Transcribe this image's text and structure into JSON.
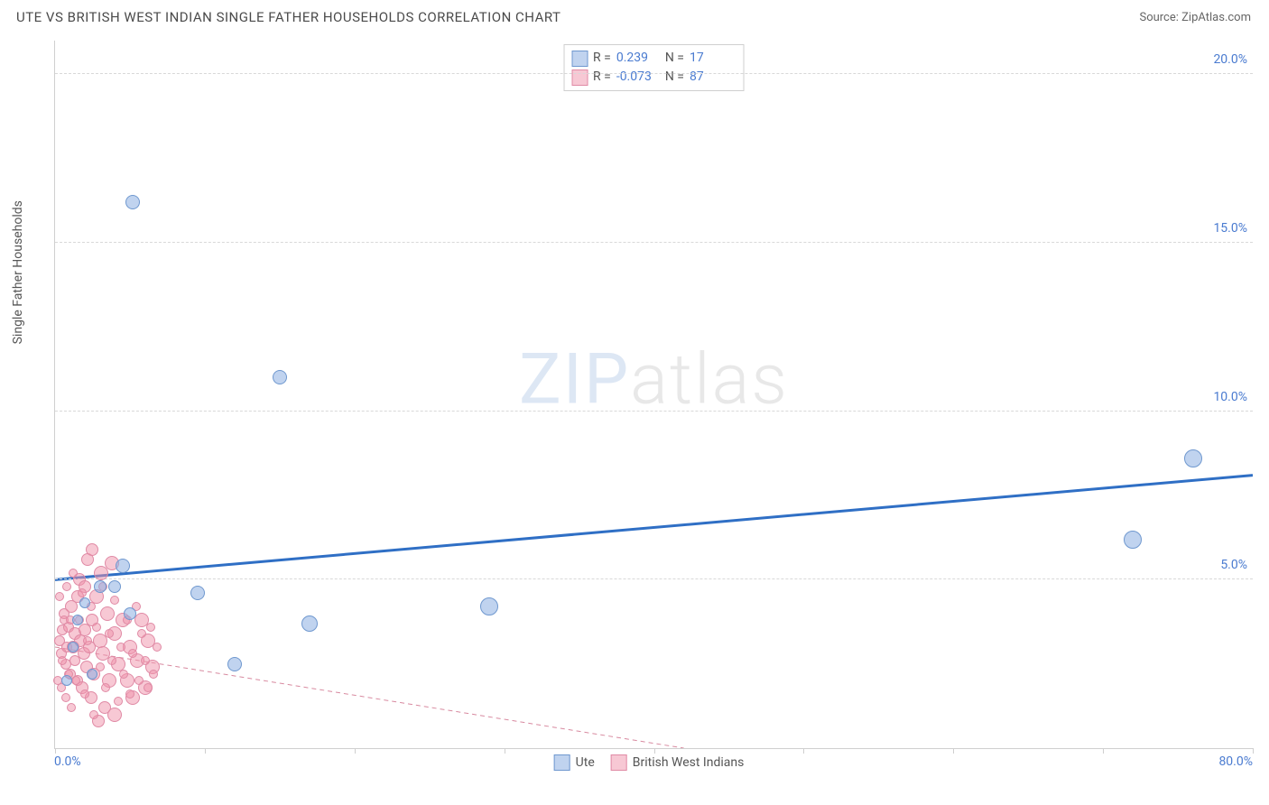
{
  "header": {
    "title": "UTE VS BRITISH WEST INDIAN SINGLE FATHER HOUSEHOLDS CORRELATION CHART",
    "source": "Source: ZipAtlas.com"
  },
  "watermark": {
    "part1": "ZIP",
    "part2": "atlas"
  },
  "chart": {
    "type": "scatter",
    "y_axis_label": "Single Father Households",
    "xlim": [
      0,
      80
    ],
    "ylim": [
      0,
      21
    ],
    "x_ticks_at": [
      0,
      10,
      20,
      30,
      40,
      50,
      60,
      70,
      80
    ],
    "x_tick_labels": {
      "0": "0.0%",
      "80": "80.0%"
    },
    "y_gridlines": [
      5,
      10,
      15,
      20
    ],
    "y_tick_labels": {
      "5": "5.0%",
      "10": "10.0%",
      "15": "15.0%",
      "20": "20.0%"
    },
    "grid_color": "#d8d8d8",
    "axis_color": "#cfcfcf",
    "background_color": "#ffffff",
    "tick_label_color": "#4a7bd0",
    "tick_label_fontsize": 14,
    "legend_stats": [
      {
        "series": "ute",
        "R": "0.239",
        "N": "17"
      },
      {
        "series": "bwi",
        "R": "-0.073",
        "N": "87"
      }
    ],
    "legend_bottom": [
      {
        "swatch": "blue",
        "label": "Ute"
      },
      {
        "swatch": "pink",
        "label": "British West Indians"
      }
    ],
    "series": {
      "ute": {
        "label": "Ute",
        "marker_fill": "rgba(140,175,225,0.55)",
        "marker_stroke": "#6f98cf",
        "marker_radius": 8,
        "trend": {
          "x1": 0,
          "y1": 5.0,
          "x2": 80,
          "y2": 8.1,
          "color": "#2f6fc5",
          "width": 3,
          "dash": "none"
        },
        "points": [
          {
            "x": 5.2,
            "y": 16.2,
            "r": 8
          },
          {
            "x": 15.0,
            "y": 11.0,
            "r": 8
          },
          {
            "x": 76.0,
            "y": 8.6,
            "r": 10
          },
          {
            "x": 72.0,
            "y": 6.2,
            "r": 10
          },
          {
            "x": 29.0,
            "y": 4.2,
            "r": 10
          },
          {
            "x": 9.5,
            "y": 4.6,
            "r": 8
          },
          {
            "x": 4.5,
            "y": 5.4,
            "r": 8
          },
          {
            "x": 4.0,
            "y": 4.8,
            "r": 7
          },
          {
            "x": 3.0,
            "y": 4.8,
            "r": 7
          },
          {
            "x": 5.0,
            "y": 4.0,
            "r": 7
          },
          {
            "x": 17.0,
            "y": 3.7,
            "r": 9
          },
          {
            "x": 12.0,
            "y": 2.5,
            "r": 8
          },
          {
            "x": 2.0,
            "y": 4.3,
            "r": 6
          },
          {
            "x": 2.5,
            "y": 2.2,
            "r": 6
          },
          {
            "x": 1.2,
            "y": 3.0,
            "r": 6
          },
          {
            "x": 1.5,
            "y": 3.8,
            "r": 6
          },
          {
            "x": 0.8,
            "y": 2.0,
            "r": 6
          }
        ]
      },
      "bwi": {
        "label": "British West Indians",
        "marker_fill": "rgba(240,145,170,0.5)",
        "marker_stroke": "#e08aa5",
        "marker_radius": 7,
        "trend": {
          "x1": 0,
          "y1": 3.0,
          "x2": 42,
          "y2": 0.0,
          "color": "#d88aa0",
          "width": 1,
          "dash": "5,4"
        },
        "points": [
          {
            "x": 0.3,
            "y": 3.2,
            "r": 6
          },
          {
            "x": 0.5,
            "y": 3.5,
            "r": 6
          },
          {
            "x": 0.4,
            "y": 2.8,
            "r": 6
          },
          {
            "x": 0.6,
            "y": 4.0,
            "r": 6
          },
          {
            "x": 0.8,
            "y": 3.0,
            "r": 6
          },
          {
            "x": 0.7,
            "y": 2.5,
            "r": 6
          },
          {
            "x": 0.9,
            "y": 3.6,
            "r": 6
          },
          {
            "x": 1.0,
            "y": 2.2,
            "r": 6
          },
          {
            "x": 1.1,
            "y": 4.2,
            "r": 7
          },
          {
            "x": 1.2,
            "y": 3.0,
            "r": 7
          },
          {
            "x": 1.3,
            "y": 3.4,
            "r": 7
          },
          {
            "x": 1.3,
            "y": 2.6,
            "r": 6
          },
          {
            "x": 1.5,
            "y": 4.5,
            "r": 7
          },
          {
            "x": 1.5,
            "y": 2.0,
            "r": 6
          },
          {
            "x": 1.6,
            "y": 5.0,
            "r": 7
          },
          {
            "x": 1.7,
            "y": 3.2,
            "r": 7
          },
          {
            "x": 1.8,
            "y": 1.8,
            "r": 7
          },
          {
            "x": 1.9,
            "y": 2.8,
            "r": 7
          },
          {
            "x": 2.0,
            "y": 3.5,
            "r": 7
          },
          {
            "x": 2.0,
            "y": 4.8,
            "r": 7
          },
          {
            "x": 2.1,
            "y": 2.4,
            "r": 7
          },
          {
            "x": 2.2,
            "y": 5.6,
            "r": 7
          },
          {
            "x": 2.3,
            "y": 3.0,
            "r": 7
          },
          {
            "x": 2.4,
            "y": 1.5,
            "r": 7
          },
          {
            "x": 2.5,
            "y": 5.9,
            "r": 7
          },
          {
            "x": 2.5,
            "y": 3.8,
            "r": 7
          },
          {
            "x": 2.6,
            "y": 2.2,
            "r": 7
          },
          {
            "x": 2.8,
            "y": 4.5,
            "r": 8
          },
          {
            "x": 2.9,
            "y": 0.8,
            "r": 7
          },
          {
            "x": 3.0,
            "y": 3.2,
            "r": 8
          },
          {
            "x": 3.1,
            "y": 5.2,
            "r": 8
          },
          {
            "x": 3.2,
            "y": 2.8,
            "r": 8
          },
          {
            "x": 3.3,
            "y": 1.2,
            "r": 7
          },
          {
            "x": 3.5,
            "y": 4.0,
            "r": 8
          },
          {
            "x": 3.6,
            "y": 2.0,
            "r": 8
          },
          {
            "x": 3.8,
            "y": 5.5,
            "r": 8
          },
          {
            "x": 4.0,
            "y": 3.4,
            "r": 8
          },
          {
            "x": 4.0,
            "y": 1.0,
            "r": 8
          },
          {
            "x": 4.2,
            "y": 2.5,
            "r": 8
          },
          {
            "x": 4.5,
            "y": 3.8,
            "r": 8
          },
          {
            "x": 4.8,
            "y": 2.0,
            "r": 8
          },
          {
            "x": 5.0,
            "y": 3.0,
            "r": 8
          },
          {
            "x": 5.2,
            "y": 1.5,
            "r": 8
          },
          {
            "x": 5.5,
            "y": 2.6,
            "r": 8
          },
          {
            "x": 5.8,
            "y": 3.8,
            "r": 8
          },
          {
            "x": 6.0,
            "y": 1.8,
            "r": 8
          },
          {
            "x": 6.2,
            "y": 3.2,
            "r": 8
          },
          {
            "x": 6.5,
            "y": 2.4,
            "r": 8
          },
          {
            "x": 0.2,
            "y": 2.0,
            "r": 5
          },
          {
            "x": 0.3,
            "y": 4.5,
            "r": 5
          },
          {
            "x": 0.4,
            "y": 1.8,
            "r": 5
          },
          {
            "x": 0.5,
            "y": 2.6,
            "r": 5
          },
          {
            "x": 0.6,
            "y": 3.8,
            "r": 5
          },
          {
            "x": 0.7,
            "y": 1.5,
            "r": 5
          },
          {
            "x": 0.8,
            "y": 4.8,
            "r": 5
          },
          {
            "x": 0.9,
            "y": 2.2,
            "r": 5
          },
          {
            "x": 1.0,
            "y": 3.8,
            "r": 5
          },
          {
            "x": 1.1,
            "y": 1.2,
            "r": 5
          },
          {
            "x": 1.2,
            "y": 5.2,
            "r": 5
          },
          {
            "x": 1.4,
            "y": 2.0,
            "r": 5
          },
          {
            "x": 1.6,
            "y": 3.8,
            "r": 5
          },
          {
            "x": 1.8,
            "y": 4.6,
            "r": 5
          },
          {
            "x": 2.0,
            "y": 1.6,
            "r": 5
          },
          {
            "x": 2.2,
            "y": 3.2,
            "r": 5
          },
          {
            "x": 2.4,
            "y": 4.2,
            "r": 5
          },
          {
            "x": 2.6,
            "y": 1.0,
            "r": 5
          },
          {
            "x": 2.8,
            "y": 3.6,
            "r": 5
          },
          {
            "x": 3.0,
            "y": 2.4,
            "r": 5
          },
          {
            "x": 3.2,
            "y": 4.8,
            "r": 5
          },
          {
            "x": 3.4,
            "y": 1.8,
            "r": 5
          },
          {
            "x": 3.6,
            "y": 3.4,
            "r": 5
          },
          {
            "x": 3.8,
            "y": 2.6,
            "r": 5
          },
          {
            "x": 4.0,
            "y": 4.4,
            "r": 5
          },
          {
            "x": 4.2,
            "y": 1.4,
            "r": 5
          },
          {
            "x": 4.4,
            "y": 3.0,
            "r": 5
          },
          {
            "x": 4.6,
            "y": 2.2,
            "r": 5
          },
          {
            "x": 4.8,
            "y": 3.8,
            "r": 5
          },
          {
            "x": 5.0,
            "y": 1.6,
            "r": 5
          },
          {
            "x": 5.2,
            "y": 2.8,
            "r": 5
          },
          {
            "x": 5.4,
            "y": 4.2,
            "r": 5
          },
          {
            "x": 5.6,
            "y": 2.0,
            "r": 5
          },
          {
            "x": 5.8,
            "y": 3.4,
            "r": 5
          },
          {
            "x": 6.0,
            "y": 2.6,
            "r": 5
          },
          {
            "x": 6.2,
            "y": 1.8,
            "r": 5
          },
          {
            "x": 6.4,
            "y": 3.6,
            "r": 5
          },
          {
            "x": 6.6,
            "y": 2.2,
            "r": 5
          },
          {
            "x": 6.8,
            "y": 3.0,
            "r": 5
          }
        ]
      }
    }
  }
}
